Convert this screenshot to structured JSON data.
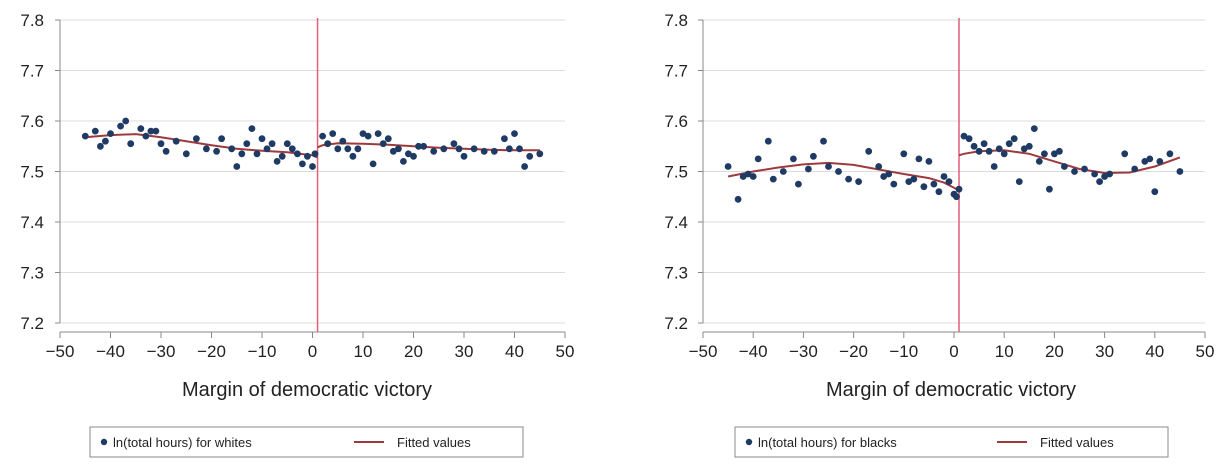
{
  "colors": {
    "points": "#1f3b64",
    "fit": "#9e3a3d",
    "cutoff": "#e0607a",
    "grid": "#dcdcdc",
    "axis": "#888888",
    "legend_border": "#8a8a8a"
  },
  "chart_data": [
    {
      "type": "scatter",
      "title": "",
      "xlabel": "Margin of democratic victory",
      "ylabel": "",
      "xlim": [
        -50,
        50
      ],
      "ylim": [
        7.2,
        7.8
      ],
      "grid": true,
      "legend_position": "bottom",
      "cutoff_x": 1,
      "x_ticks": [
        "−50",
        "−40",
        "−30",
        "−20",
        "−10",
        "0",
        "10",
        "20",
        "30",
        "40",
        "50"
      ],
      "y_ticks": [
        "7.2",
        "7.3",
        "7.4",
        "7.5",
        "7.6",
        "7.7",
        "7.8"
      ],
      "series": [
        {
          "name": "ln(total hours) for whites",
          "kind": "scatter",
          "x": [
            -45,
            -43,
            -42,
            -41,
            -40,
            -38,
            -37,
            -36,
            -34,
            -33,
            -32,
            -31,
            -30,
            -29,
            -27,
            -25,
            -23,
            -21,
            -19,
            -18,
            -16,
            -15,
            -14,
            -13,
            -12,
            -11,
            -10,
            -9,
            -8,
            -7,
            -6,
            -5,
            -4,
            -3,
            -2,
            -1,
            0,
            0.5,
            2,
            3,
            4,
            5,
            6,
            7,
            8,
            9,
            10,
            11,
            12,
            13,
            14,
            15,
            16,
            17,
            18,
            19,
            20,
            21,
            22,
            24,
            26,
            28,
            29,
            30,
            32,
            34,
            36,
            38,
            39,
            40,
            41,
            42,
            43,
            45
          ],
          "y": [
            7.57,
            7.58,
            7.55,
            7.56,
            7.575,
            7.59,
            7.6,
            7.555,
            7.585,
            7.57,
            7.58,
            7.58,
            7.555,
            7.54,
            7.56,
            7.535,
            7.565,
            7.545,
            7.54,
            7.565,
            7.545,
            7.51,
            7.535,
            7.555,
            7.585,
            7.535,
            7.565,
            7.545,
            7.555,
            7.52,
            7.53,
            7.555,
            7.545,
            7.535,
            7.515,
            7.53,
            7.51,
            7.535,
            7.57,
            7.555,
            7.575,
            7.545,
            7.56,
            7.545,
            7.53,
            7.545,
            7.575,
            7.57,
            7.515,
            7.575,
            7.555,
            7.565,
            7.54,
            7.545,
            7.52,
            7.535,
            7.53,
            7.55,
            7.55,
            7.54,
            7.545,
            7.555,
            7.545,
            7.53,
            7.545,
            7.54,
            7.54,
            7.565,
            7.545,
            7.575,
            7.545,
            7.51,
            7.53,
            7.535
          ]
        },
        {
          "name": "Fitted values",
          "kind": "line",
          "segments": [
            {
              "x": [
                -45,
                -40,
                -35,
                -30,
                -25,
                -20,
                -15,
                -10,
                -5,
                0,
                1
              ],
              "y": [
                7.568,
                7.572,
                7.574,
                7.568,
                7.56,
                7.552,
                7.545,
                7.541,
                7.538,
                7.532,
                7.528
              ]
            },
            {
              "x": [
                1,
                2,
                5,
                10,
                15,
                20,
                25,
                30,
                35,
                40,
                45
              ],
              "y": [
                7.548,
                7.552,
                7.556,
                7.555,
                7.553,
                7.55,
                7.547,
                7.545,
                7.543,
                7.542,
                7.542
              ]
            }
          ]
        }
      ]
    },
    {
      "type": "scatter",
      "title": "",
      "xlabel": "Margin of democratic victory",
      "ylabel": "",
      "xlim": [
        -50,
        50
      ],
      "ylim": [
        7.2,
        7.8
      ],
      "grid": true,
      "legend_position": "bottom",
      "cutoff_x": 1,
      "x_ticks": [
        "−50",
        "−40",
        "−30",
        "−20",
        "−10",
        "0",
        "10",
        "20",
        "30",
        "40",
        "50"
      ],
      "y_ticks": [
        "7.2",
        "7.3",
        "7.4",
        "7.5",
        "7.6",
        "7.7",
        "7.8"
      ],
      "series": [
        {
          "name": "ln(total hours) for blacks",
          "kind": "scatter",
          "x": [
            -45,
            -43,
            -42,
            -41,
            -40,
            -39,
            -37,
            -36,
            -34,
            -32,
            -31,
            -29,
            -28,
            -26,
            -25,
            -23,
            -21,
            -19,
            -17,
            -15,
            -14,
            -13,
            -12,
            -10,
            -9,
            -8,
            -7,
            -6,
            -5,
            -4,
            -3,
            -2,
            -1,
            0,
            0.5,
            1,
            2,
            3,
            4,
            5,
            6,
            7,
            8,
            9,
            10,
            11,
            12,
            13,
            14,
            15,
            16,
            17,
            18,
            19,
            20,
            21,
            22,
            24,
            26,
            28,
            29,
            30,
            31,
            34,
            36,
            38,
            39,
            40,
            41,
            43,
            45
          ],
          "y": [
            7.51,
            7.445,
            7.49,
            7.495,
            7.49,
            7.525,
            7.56,
            7.485,
            7.5,
            7.525,
            7.475,
            7.505,
            7.53,
            7.56,
            7.51,
            7.5,
            7.485,
            7.48,
            7.54,
            7.51,
            7.49,
            7.495,
            7.475,
            7.535,
            7.48,
            7.485,
            7.525,
            7.47,
            7.52,
            7.475,
            7.46,
            7.49,
            7.48,
            7.455,
            7.45,
            7.465,
            7.57,
            7.565,
            7.55,
            7.54,
            7.555,
            7.54,
            7.51,
            7.545,
            7.535,
            7.555,
            7.565,
            7.48,
            7.545,
            7.55,
            7.585,
            7.52,
            7.535,
            7.465,
            7.535,
            7.54,
            7.51,
            7.5,
            7.505,
            7.495,
            7.48,
            7.49,
            7.495,
            7.535,
            7.505,
            7.52,
            7.525,
            7.46,
            7.52,
            7.535,
            7.5
          ]
        },
        {
          "name": "Fitted values",
          "kind": "line",
          "segments": [
            {
              "x": [
                -45,
                -40,
                -35,
                -30,
                -25,
                -20,
                -15,
                -10,
                -5,
                -2,
                0,
                1
              ],
              "y": [
                7.49,
                7.5,
                7.508,
                7.514,
                7.517,
                7.513,
                7.504,
                7.495,
                7.487,
                7.478,
                7.468,
                7.462
              ]
            },
            {
              "x": [
                1,
                2,
                5,
                10,
                15,
                20,
                25,
                30,
                35,
                40,
                45
              ],
              "y": [
                7.532,
                7.535,
                7.54,
                7.542,
                7.535,
                7.52,
                7.505,
                7.497,
                7.498,
                7.51,
                7.528
              ]
            }
          ]
        }
      ]
    }
  ]
}
